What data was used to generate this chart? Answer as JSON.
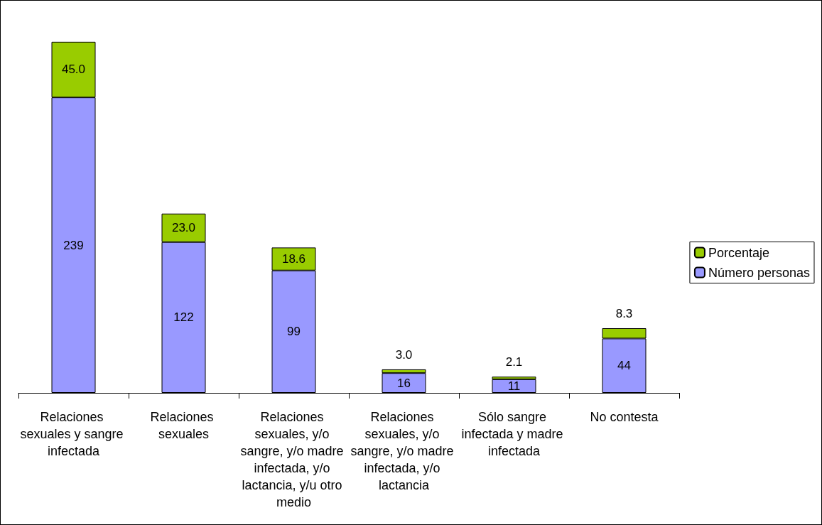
{
  "chart_data": {
    "type": "bar",
    "stacked": true,
    "legend": "right",
    "categories": [
      "Relaciones sexuales y sangre infectada",
      "Relaciones sexuales",
      "Relaciones sexuales, y/o sangre, y/o madre infectada, y/o lactancia, y/u otro medio",
      "Relaciones sexuales, y/o sangre, y/o madre infectada, y/o lactancia",
      "Sólo sangre infectada y madre infectada",
      "No contesta"
    ],
    "series": [
      {
        "name": "Número personas",
        "color": "#9999ff",
        "values": [
          239,
          122,
          99,
          16,
          11,
          44
        ],
        "value_labels": [
          "239",
          "122",
          "99",
          "16",
          "11",
          "44"
        ]
      },
      {
        "name": "Porcentaje",
        "color": "#99cc00",
        "values": [
          45.0,
          23.0,
          18.6,
          3.0,
          2.1,
          8.3
        ],
        "value_labels": [
          "45.0",
          "23.0",
          "18.6",
          "3.0",
          "2.1",
          "8.3"
        ]
      }
    ]
  }
}
